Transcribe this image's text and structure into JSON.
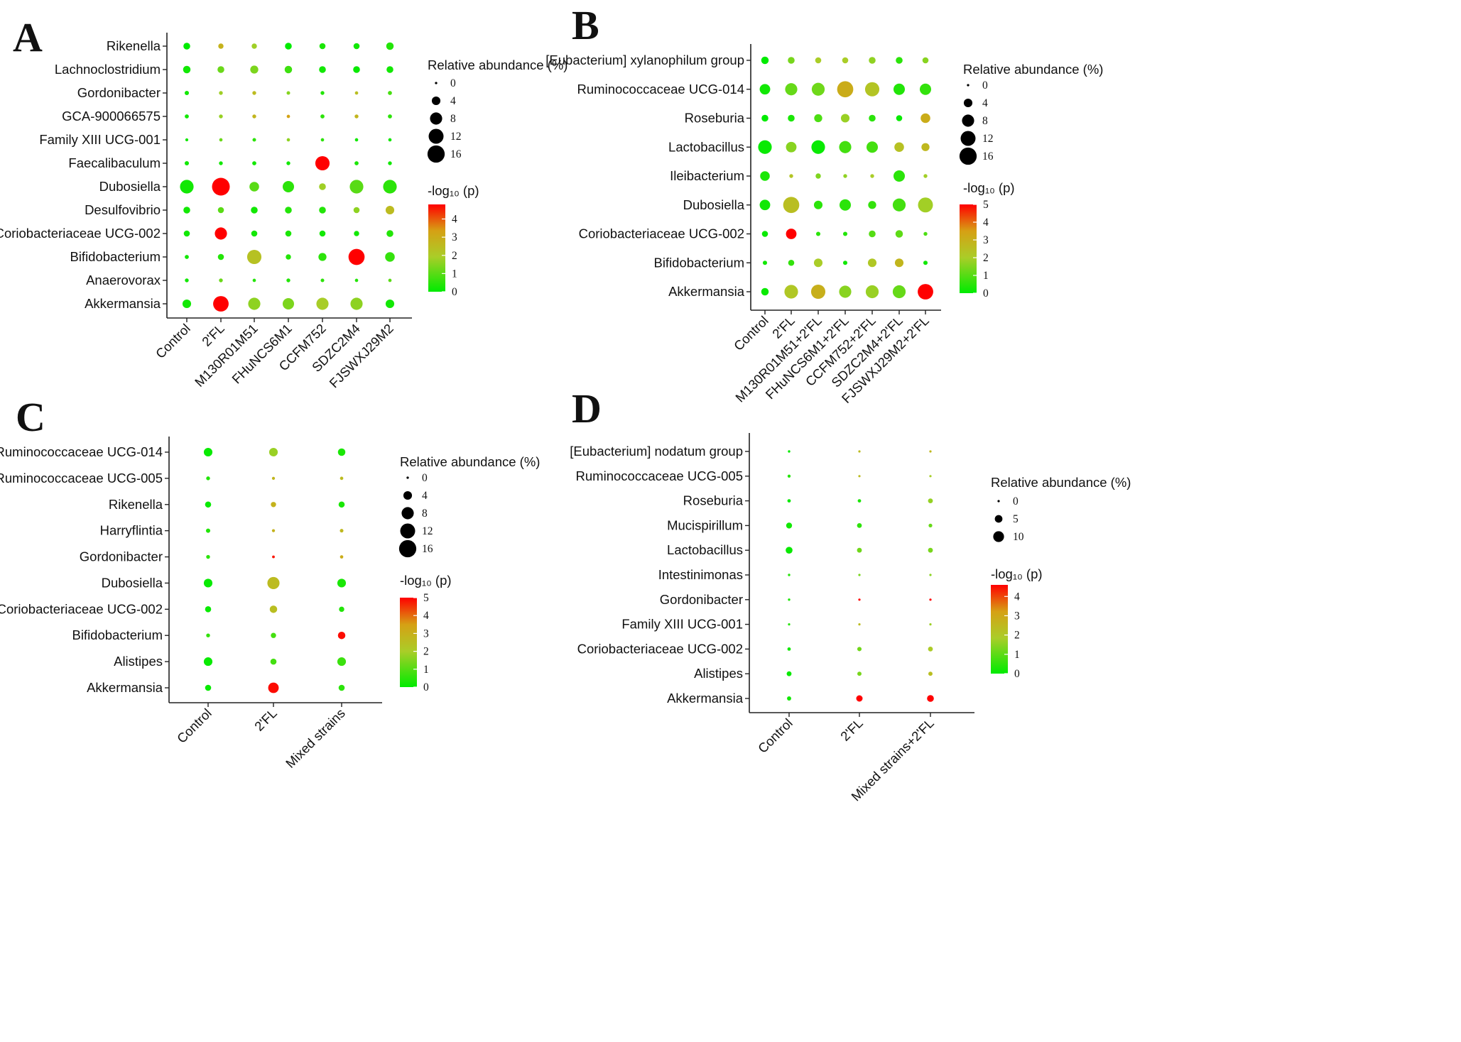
{
  "chart_data": [
    {
      "panel": "A",
      "type": "scatter",
      "categories": [
        "Control",
        "2'FL",
        "M130R01M51",
        "FHuNCS6M1",
        "CCFM752",
        "SDZC2M4",
        "FJSWXJ29M2"
      ],
      "taxa": [
        "Rikenella",
        "Lachnoclostridium",
        "Gordonibacter",
        "GCA-900066575",
        "Family XIII UCG-001",
        "Faecalibaculum",
        "Dubosiella",
        "Desulfovibrio",
        "Coriobacteriaceae UCG-002",
        "Bifidobacterium",
        "Anaerovorax",
        "Akkermansia"
      ],
      "abundance": [
        [
          2.5,
          1.5,
          1.5,
          2.5,
          2,
          2,
          3
        ],
        [
          3,
          2.5,
          3.5,
          3,
          2.5,
          2.5,
          2.5
        ],
        [
          1,
          0.8,
          0.8,
          0.7,
          0.8,
          0.6,
          0.9
        ],
        [
          0.9,
          0.8,
          0.8,
          0.6,
          0.9,
          0.8,
          0.9
        ],
        [
          0.5,
          0.6,
          0.7,
          0.6,
          0.6,
          0.6,
          0.6
        ],
        [
          1,
          0.8,
          0.9,
          0.8,
          11,
          0.9,
          0.8
        ],
        [
          10,
          17,
          5,
          7,
          2.5,
          10,
          10
        ],
        [
          2.5,
          2,
          2.5,
          2.5,
          2.5,
          2,
          4
        ],
        [
          2,
          8,
          2,
          2,
          2,
          1.5,
          2.5
        ],
        [
          0.9,
          2,
          11,
          1.5,
          3.5,
          14,
          5
        ],
        [
          0.8,
          0.8,
          0.6,
          0.8,
          0.7,
          0.6,
          0.6
        ],
        [
          4,
          13,
          8,
          7,
          8,
          8,
          4
        ]
      ],
      "neglog10p": [
        [
          0,
          2.8,
          1.8,
          0,
          0.3,
          0.2,
          0.4
        ],
        [
          0.2,
          1.2,
          1.4,
          0.7,
          0.2,
          0.1,
          0.2
        ],
        [
          0.2,
          1.8,
          2.5,
          1.5,
          0.4,
          2.4,
          0.8
        ],
        [
          0.2,
          1.7,
          2.7,
          3.3,
          0.5,
          2.7,
          0.5
        ],
        [
          0.2,
          1.2,
          0.5,
          1.6,
          0.5,
          0.2,
          0.2
        ],
        [
          0.2,
          0.2,
          0.2,
          0.2,
          4.8,
          0.3,
          0.2
        ],
        [
          0.2,
          4.8,
          1,
          0.5,
          1.8,
          1,
          0.5
        ],
        [
          0.2,
          1,
          0.2,
          0.4,
          0.4,
          1.6,
          2.5
        ],
        [
          0.2,
          4.8,
          0.2,
          0.3,
          0.2,
          0.2,
          0.4
        ],
        [
          0.2,
          0.4,
          2.3,
          0.4,
          0.5,
          4.8,
          0.6
        ],
        [
          0.2,
          1.2,
          0.4,
          0.4,
          0.5,
          0.4,
          1
        ],
        [
          0.2,
          4.8,
          1.6,
          1.4,
          1.9,
          1.6,
          0.2
        ]
      ],
      "size_legend": {
        "title": "Relative abundance (%)",
        "values": [
          0,
          4,
          8,
          12,
          16
        ]
      },
      "color_legend": {
        "title": "-log₁₀ (p)",
        "ticks": [
          0,
          1,
          2,
          3,
          4
        ],
        "max": 4.8
      }
    },
    {
      "panel": "B",
      "type": "scatter",
      "categories": [
        "Control",
        "2'FL",
        "M130R01M51+2'FL",
        "FHuNCS6M1+2'FL",
        "CCFM752+2'FL",
        "SDZC2M4+2'FL",
        "FJSWXJ29M2+2'FL"
      ],
      "taxa": [
        "[Eubacterium] xylanophilum group",
        "Ruminococcaceae UCG-014",
        "Roseburia",
        "Lactobacillus",
        "Ileibacterium",
        "Dubosiella",
        "Coriobacteriaceae UCG-002",
        "Bifidobacterium",
        "Akkermansia"
      ],
      "abundance": [
        [
          3,
          2.5,
          2,
          2,
          2.5,
          2.5,
          2
        ],
        [
          6,
          8,
          9,
          14,
          11,
          7,
          7
        ],
        [
          2.5,
          2.5,
          3.5,
          4,
          2.5,
          2,
          5
        ],
        [
          10,
          6,
          10,
          8,
          7,
          5,
          3.5
        ],
        [
          5,
          0.8,
          1.5,
          0.8,
          0.8,
          7,
          0.8
        ],
        [
          6,
          14,
          4,
          7,
          3.5,
          9,
          12
        ],
        [
          2,
          6,
          1,
          1,
          2.5,
          3,
          0.8
        ],
        [
          1,
          2,
          4,
          1,
          4,
          4,
          1
        ],
        [
          3,
          10,
          11,
          8,
          9,
          9,
          13
        ]
      ],
      "neglog10p": [
        [
          0,
          1.4,
          2,
          2,
          1.7,
          0.5,
          1.6
        ],
        [
          0.2,
          1.2,
          1.3,
          3.1,
          2.3,
          0.4,
          0.6
        ],
        [
          0,
          0.3,
          0.9,
          1.8,
          0.5,
          0.1,
          3.1
        ],
        [
          0.1,
          1.6,
          0.1,
          0.8,
          0.8,
          2.4,
          2.7
        ],
        [
          0.3,
          2.3,
          1.5,
          1.7,
          2,
          0.5,
          1.9
        ],
        [
          0.2,
          2.5,
          0.5,
          0.5,
          0.6,
          0.8,
          1.9
        ],
        [
          0.1,
          5,
          0.5,
          0.4,
          1,
          1.1,
          0.9
        ],
        [
          0.2,
          0.6,
          2,
          0.2,
          2.2,
          2.8,
          0.2
        ],
        [
          0.1,
          2.2,
          3,
          1.6,
          1.8,
          1.2,
          5
        ]
      ],
      "size_legend": {
        "title": "Relative abundance (%)",
        "values": [
          0,
          4,
          8,
          12,
          16
        ]
      },
      "color_legend": {
        "title": "-log₁₀ (p)",
        "ticks": [
          0,
          1,
          2,
          3,
          4,
          5
        ],
        "max": 5
      }
    },
    {
      "panel": "C",
      "type": "scatter",
      "categories": [
        "Control",
        "2'FL",
        "Mixed strains"
      ],
      "taxa": [
        "Ruminococcaceae UCG-014",
        "Ruminococcaceae UCG-005",
        "Rikenella",
        "Harryflintia",
        "Gordonibacter",
        "Dubosiella",
        "Coriobacteriaceae UCG-002",
        "Bifidobacterium",
        "Alistipes",
        "Akkermansia"
      ],
      "abundance": [
        [
          4,
          4,
          3
        ],
        [
          0.8,
          0.5,
          0.6
        ],
        [
          2,
          1.5,
          2
        ],
        [
          1,
          0.5,
          0.7
        ],
        [
          0.8,
          0.4,
          0.6
        ],
        [
          4,
          8,
          4
        ],
        [
          2,
          3,
          1.5
        ],
        [
          0.8,
          1.5,
          3
        ],
        [
          4,
          2,
          4
        ],
        [
          2,
          6,
          2
        ]
      ],
      "neglog10p": [
        [
          0.1,
          1.8,
          0.3
        ],
        [
          0.4,
          2.8,
          2.6
        ],
        [
          0.1,
          2.9,
          0.3
        ],
        [
          0.4,
          2.9,
          2.7
        ],
        [
          0.5,
          4.8,
          3.1
        ],
        [
          0.1,
          2.6,
          0.3
        ],
        [
          0.1,
          2.5,
          0.4
        ],
        [
          0.6,
          0.8,
          4.9
        ],
        [
          0.1,
          0.8,
          0.7
        ],
        [
          0.1,
          4.9,
          0.5
        ]
      ],
      "size_legend": {
        "title": "Relative abundance (%)",
        "values": [
          0,
          4,
          8,
          12,
          16
        ]
      },
      "color_legend": {
        "title": "-log₁₀ (p)",
        "ticks": [
          0,
          1,
          2,
          3,
          4,
          5
        ],
        "max": 5
      }
    },
    {
      "panel": "D",
      "type": "scatter",
      "categories": [
        "Control",
        "2'FL",
        "Mixed strains+2'FL"
      ],
      "taxa": [
        "[Eubacterium] nodatum group",
        "Ruminococcaceae UCG-005",
        "Roseburia",
        "Mucispirillum",
        "Lactobacillus",
        "Intestinimonas",
        "Gordonibacter",
        "Family XIII UCG-001",
        "Coriobacteriaceae UCG-002",
        "Alistipes",
        "Akkermansia"
      ],
      "abundance": [
        [
          0.5,
          0.3,
          0.3
        ],
        [
          0.8,
          0.3,
          0.3
        ],
        [
          1,
          1,
          2
        ],
        [
          3,
          2,
          1.2
        ],
        [
          4,
          2,
          2
        ],
        [
          0.5,
          0.3,
          0.3
        ],
        [
          0.5,
          0.4,
          0.4
        ],
        [
          0.4,
          0.3,
          0.3
        ],
        [
          1,
          1.6,
          2
        ],
        [
          2,
          1.5,
          1.5
        ],
        [
          1.5,
          3.5,
          4
        ]
      ],
      "neglog10p": [
        [
          0.1,
          2.4,
          2.5
        ],
        [
          0.4,
          2.4,
          1.8
        ],
        [
          0.1,
          0.3,
          1.6
        ],
        [
          0.2,
          0.5,
          1.1
        ],
        [
          0.1,
          1.2,
          1.3
        ],
        [
          0.4,
          1.3,
          1.5
        ],
        [
          0.3,
          4.6,
          4.6
        ],
        [
          0.4,
          2.4,
          1.7
        ],
        [
          0.2,
          1.2,
          1.9
        ],
        [
          0.1,
          1.3,
          2.3
        ],
        [
          0.2,
          4.6,
          4.6
        ]
      ],
      "size_legend": {
        "title": "Relative abundance (%)",
        "values": [
          0,
          5,
          10
        ]
      },
      "color_legend": {
        "title": "-log₁₀ (p)",
        "ticks": [
          0,
          1,
          2,
          3,
          4
        ],
        "max": 4.6
      }
    }
  ]
}
